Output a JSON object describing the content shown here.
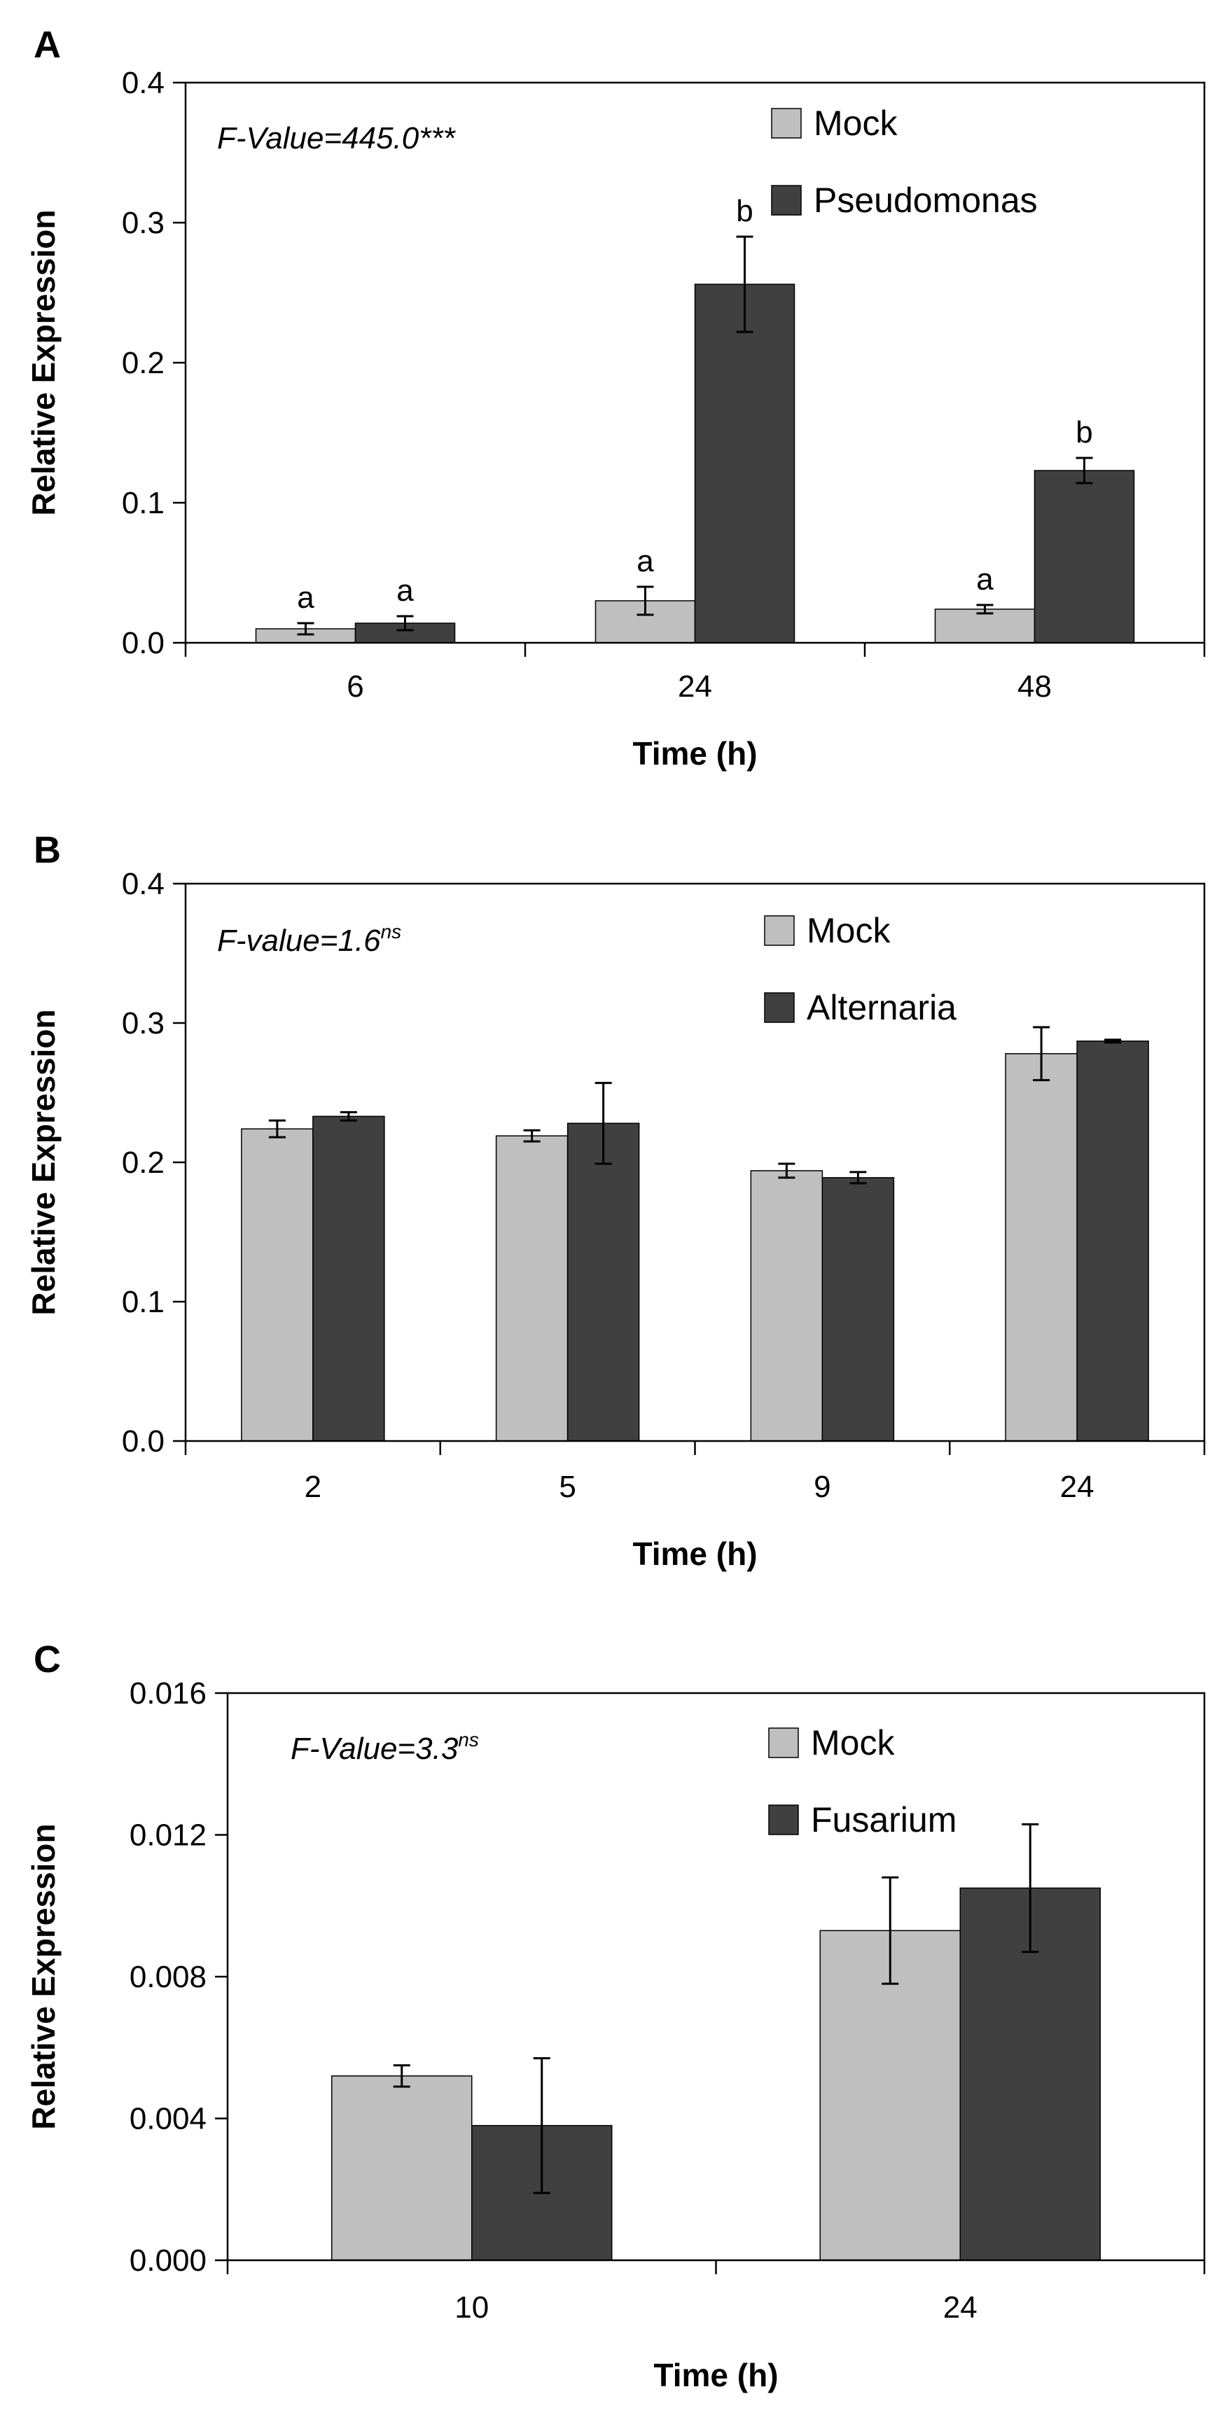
{
  "colors": {
    "mock": "#bfbfbf",
    "treated": "#404040",
    "axis": "#000000"
  },
  "chart_data": [
    {
      "panel": "A",
      "type": "bar",
      "xlabel": "Time (h)",
      "ylabel": "Relative Expression",
      "ylim": [
        0,
        0.4
      ],
      "yticks": [
        "0.0",
        "0.1",
        "0.2",
        "0.3",
        "0.4"
      ],
      "categories": [
        "6",
        "24",
        "48"
      ],
      "annotation": {
        "text": "F-Value=445.0***",
        "sup": ""
      },
      "legend_position": "top-right",
      "series": [
        {
          "name": "Mock",
          "color": "#bfbfbf",
          "values": [
            0.01,
            0.03,
            0.024
          ],
          "errors": [
            0.004,
            0.01,
            0.003
          ],
          "labels": [
            "a",
            "a",
            "a"
          ]
        },
        {
          "name": "Pseudomonas",
          "color": "#404040",
          "values": [
            0.014,
            0.256,
            0.123
          ],
          "errors": [
            0.005,
            0.034,
            0.009
          ],
          "labels": [
            "a",
            "b",
            "b"
          ]
        }
      ]
    },
    {
      "panel": "B",
      "type": "bar",
      "xlabel": "Time (h)",
      "ylabel": "Relative Expression",
      "ylim": [
        0,
        0.4
      ],
      "yticks": [
        "0.0",
        "0.1",
        "0.2",
        "0.3",
        "0.4"
      ],
      "categories": [
        "2",
        "5",
        "9",
        "24"
      ],
      "annotation": {
        "text": "F-value=1.6",
        "sup": "ns"
      },
      "legend_position": "top-right",
      "series": [
        {
          "name": "Mock",
          "color": "#bfbfbf",
          "values": [
            0.224,
            0.219,
            0.194,
            0.278
          ],
          "errors": [
            0.006,
            0.004,
            0.005,
            0.019
          ],
          "labels": []
        },
        {
          "name": "Alternaria",
          "color": "#404040",
          "values": [
            0.233,
            0.228,
            0.189,
            0.287
          ],
          "errors": [
            0.003,
            0.029,
            0.004,
            0.001
          ],
          "labels": []
        }
      ]
    },
    {
      "panel": "C",
      "type": "bar",
      "xlabel": "Time (h)",
      "ylabel": "Relative Expression",
      "ylim": [
        0,
        0.016
      ],
      "yticks": [
        "0.000",
        "0.004",
        "0.008",
        "0.012",
        "0.016"
      ],
      "categories": [
        "10",
        "24"
      ],
      "annotation": {
        "text": "F-Value=3.3",
        "sup": "ns"
      },
      "legend_position": "top-right",
      "series": [
        {
          "name": "Mock",
          "color": "#bfbfbf",
          "values": [
            0.0052,
            0.0093
          ],
          "errors": [
            0.0003,
            0.0015
          ],
          "labels": []
        },
        {
          "name": "Fusarium",
          "color": "#404040",
          "values": [
            0.0038,
            0.0105
          ],
          "errors": [
            0.0019,
            0.0018
          ],
          "labels": []
        }
      ]
    }
  ]
}
